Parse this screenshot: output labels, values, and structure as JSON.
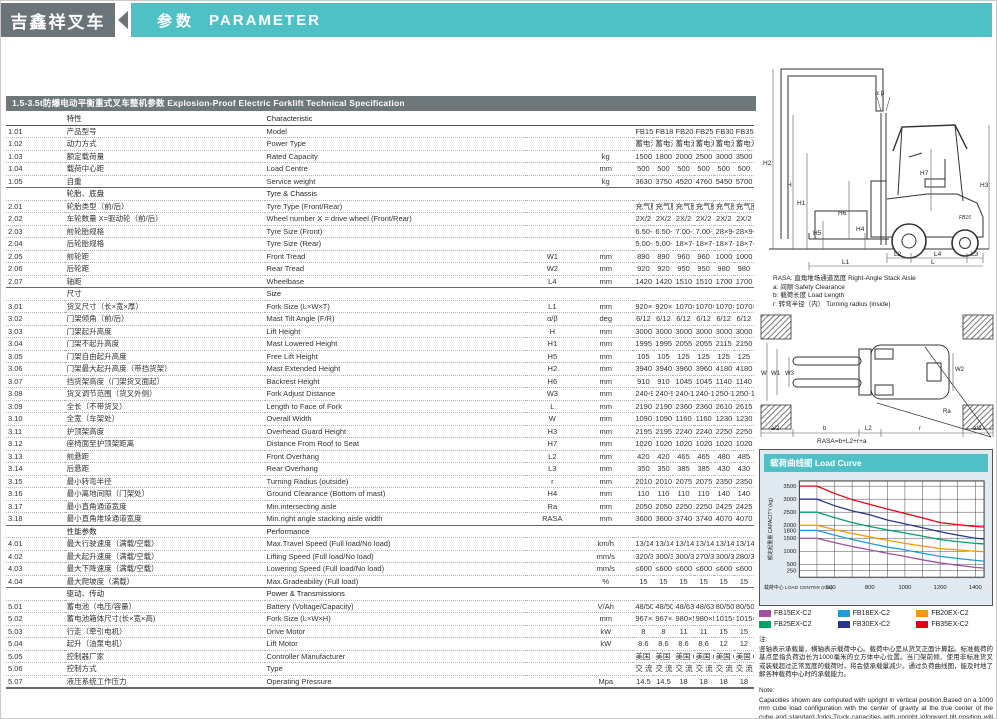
{
  "header": {
    "brand": "吉鑫祥叉车",
    "section_cn": "参数",
    "section_en": "PARAMETER"
  },
  "table": {
    "title": "1.5-3.5t防爆电动平衡重式叉车整机参数  Explosion-Proof Electric Forklift Technical Specification",
    "header_cn": "特性",
    "header_en": "Characteristic",
    "sections": [
      {
        "cn": "",
        "en": "",
        "rows": [
          {
            "no": "1.01",
            "cn": "产品型号",
            "en": "Model",
            "sym": "",
            "unit": "",
            "vals": [
              "FB15EX-C2",
              "FB18EX-C2",
              "FB20EX-C2",
              "FB25EX-C2",
              "FB30EX-C2",
              "FB35EX-C2"
            ]
          },
          {
            "no": "1.02",
            "cn": "动力方式",
            "en": "Power Type",
            "sym": "",
            "unit": "",
            "vals": [
              "蓄电池 Electric",
              "蓄电池 Electric",
              "蓄电池 Electric",
              "蓄电池 Electric",
              "蓄电池 Electric",
              "蓄电池 Electric"
            ]
          },
          {
            "no": "1.03",
            "cn": "额定载荷量",
            "en": "Rated Capacity",
            "sym": "",
            "unit": "kg",
            "vals": [
              "1500",
              "1800",
              "2000",
              "2500",
              "3000",
              "3500"
            ]
          },
          {
            "no": "1.04",
            "cn": "载荷中心距",
            "en": "Load Centre",
            "sym": "",
            "unit": "mm",
            "vals": [
              "500",
              "500",
              "500",
              "500",
              "500",
              "500"
            ]
          },
          {
            "no": "1.05",
            "cn": "自重",
            "en": "Service weight",
            "sym": "",
            "unit": "kg",
            "vals": [
              "3630",
              "3750",
              "4520",
              "4760",
              "5450",
              "5700"
            ]
          }
        ]
      },
      {
        "cn": "轮胎、底盘",
        "en": "Tyre & Chassis",
        "rows": [
          {
            "no": "2.01",
            "cn": "轮胎类型（前/后）",
            "en": "Tyre Type (Front/Rear)",
            "sym": "",
            "unit": "",
            "vals": [
              "充气胎",
              "充气胎",
              "充气胎",
              "充气胎",
              "充气胎",
              "充气胎（后实心胎）"
            ]
          },
          {
            "no": "2.02",
            "cn": "车轮数量 X=驱动轮（前/后）",
            "en": "Wheel number X = drive wheel (Front/Rear)",
            "sym": "",
            "unit": "",
            "vals": [
              "2X/2",
              "2X/2",
              "2X/2",
              "2X/2",
              "2X/2",
              "2X/2"
            ]
          },
          {
            "no": "2.03",
            "cn": "前轮胎规格",
            "en": "Tyre Size (Front)",
            "sym": "",
            "unit": "",
            "vals": [
              "6.50-10-10PR",
              "6.50-10-10PR",
              "7.00-12-12PR",
              "7.00-12-12PR",
              "28×9-15-12PR",
              "28×9-15-12PR"
            ]
          },
          {
            "no": "2.04",
            "cn": "后轮胎规格",
            "en": "Tyre Size (Rear)",
            "sym": "",
            "unit": "",
            "vals": [
              "5.00-8-10PR",
              "5.00-8-10PR",
              "18×7-8-14PR",
              "18×7-8-14PR",
              "18×7-8-14PR",
              "18×7-8（实心胎）"
            ]
          },
          {
            "no": "2.05",
            "cn": "前轮距",
            "en": "Front Tread",
            "sym": "W1",
            "unit": "mm",
            "vals": [
              "890",
              "890",
              "960",
              "960",
              "1000",
              "1000"
            ]
          },
          {
            "no": "2.06",
            "cn": "后轮距",
            "en": "Rear Tread",
            "sym": "W2",
            "unit": "mm",
            "vals": [
              "920",
              "920",
              "950",
              "950",
              "980",
              "980"
            ]
          },
          {
            "no": "2.07",
            "cn": "轴距",
            "en": "Wheelbase",
            "sym": "L4",
            "unit": "mm",
            "vals": [
              "1420",
              "1420",
              "1510",
              "1510",
              "1700",
              "1700"
            ]
          }
        ]
      },
      {
        "cn": "尺寸",
        "en": "Size",
        "rows": [
          {
            "no": "3.01",
            "cn": "货叉尺寸（长×宽×厚）",
            "en": "Fork Size (L×W×T)",
            "sym": "L1",
            "unit": "mm",
            "vals": [
              "920×120×35",
              "920×120×35",
              "1070×120×40",
              "1070×120×40",
              "1070×125×45",
              "1070×125×50"
            ]
          },
          {
            "no": "3.02",
            "cn": "门架倾角（前/后）",
            "en": "Mast Tilt Angle (F/R)",
            "sym": "α/β",
            "unit": "deg",
            "vals": [
              "6/12",
              "6/12",
              "6/12",
              "6/12",
              "6/12",
              "6/12"
            ]
          },
          {
            "no": "3.03",
            "cn": "门架起升高度",
            "en": "Lift Height",
            "sym": "H",
            "unit": "mm",
            "vals": [
              "3000",
              "3000",
              "3000",
              "3000",
              "3000",
              "3000"
            ]
          },
          {
            "no": "3.04",
            "cn": "门架不起升高度",
            "en": "Mast Lowered Height",
            "sym": "H1",
            "unit": "mm",
            "vals": [
              "1995",
              "1995",
              "2055",
              "2055",
              "2115",
              "2150"
            ]
          },
          {
            "no": "3.05",
            "cn": "门架自由起升高度",
            "en": "Free Lift Height",
            "sym": "H5",
            "unit": "mm",
            "vals": [
              "105",
              "105",
              "125",
              "125",
              "125",
              "125"
            ]
          },
          {
            "no": "3.06",
            "cn": "门架最大起升高度（带挡货架）",
            "en": "Mast Extended Height",
            "sym": "H2",
            "unit": "mm",
            "vals": [
              "3940",
              "3940",
              "3960",
              "3960",
              "4180",
              "4180"
            ]
          },
          {
            "no": "3.07",
            "cn": "挡货架高度（门架货叉面起）",
            "en": "Backrest Height",
            "sym": "H6",
            "unit": "mm",
            "vals": [
              "910",
              "910",
              "1045",
              "1045",
              "1140",
              "1140"
            ]
          },
          {
            "no": "3.08",
            "cn": "货叉调节范围（货叉外侧）",
            "en": "Fork Adjust Distance",
            "sym": "W3",
            "unit": "mm",
            "vals": [
              "240-970",
              "240-970",
              "240-1040",
              "240-1040",
              "250-1100",
              "250-1100"
            ]
          },
          {
            "no": "3.09",
            "cn": "全长（不带货叉）",
            "en": "Length to Face of Fork",
            "sym": "L",
            "unit": "mm",
            "vals": [
              "2190",
              "2190",
              "2360",
              "2360",
              "2610",
              "2615"
            ]
          },
          {
            "no": "3.10",
            "cn": "全宽（车架处）",
            "en": "Overall Width",
            "sym": "W",
            "unit": "mm",
            "vals": [
              "1090",
              "1090",
              "1160",
              "1160",
              "1230",
              "1230"
            ]
          },
          {
            "no": "3.11",
            "cn": "护顶架高度",
            "en": "Overhead Guard Height",
            "sym": "H3",
            "unit": "mm",
            "vals": [
              "2195",
              "2195",
              "2240",
              "2240",
              "2250",
              "2250"
            ]
          },
          {
            "no": "3.12",
            "cn": "座椅面至护顶架距离",
            "en": "Distance From Roof to Seat",
            "sym": "H7",
            "unit": "mm",
            "vals": [
              "1020",
              "1020",
              "1020",
              "1020",
              "1020",
              "1020"
            ]
          },
          {
            "no": "3.13",
            "cn": "前悬距",
            "en": "Front Overhang",
            "sym": "L2",
            "unit": "mm",
            "vals": [
              "420",
              "420",
              "465",
              "465",
              "480",
              "485"
            ]
          },
          {
            "no": "3.14",
            "cn": "后悬距",
            "en": "Rear Overhang",
            "sym": "L3",
            "unit": "mm",
            "vals": [
              "350",
              "350",
              "385",
              "385",
              "430",
              "430"
            ]
          },
          {
            "no": "3.15",
            "cn": "最小转弯半径",
            "en": "Turning Radius (outside)",
            "sym": "r",
            "unit": "mm",
            "vals": [
              "2010",
              "2010",
              "2075",
              "2075",
              "2350",
              "2350"
            ]
          },
          {
            "no": "3.16",
            "cn": "最小离地间隙（门架处）",
            "en": "Ground Clearance (Bottom of mast)",
            "sym": "H4",
            "unit": "mm",
            "vals": [
              "110",
              "110",
              "110",
              "110",
              "140",
              "140"
            ]
          },
          {
            "no": "3.17",
            "cn": "最小直角通道宽度",
            "en": "Min.intersecting aisle",
            "sym": "Ra",
            "unit": "mm",
            "vals": [
              "2050",
              "2050",
              "2250",
              "2250",
              "2425",
              "2425"
            ]
          },
          {
            "no": "3.18",
            "cn": "最小直角堆垛通道宽度",
            "en": "Min.right angle stacking aisle width",
            "sym": "RASA",
            "unit": "mm",
            "vals": [
              "3600",
              "3600",
              "3740",
              "3740",
              "4070",
              "4070"
            ]
          }
        ]
      },
      {
        "cn": "性能参数",
        "en": "Performance",
        "rows": [
          {
            "no": "4.01",
            "cn": "最大行驶速度（满载/空载）",
            "en": "Max.Travel Speed (Full load/No load)",
            "sym": "",
            "unit": "km/h",
            "vals": [
              "13/14",
              "13/14",
              "13/14",
              "13/14",
              "13/14",
              "13/14"
            ]
          },
          {
            "no": "4.02",
            "cn": "最大起升速度（满载/空载）",
            "en": "Lifting Speed (Full load/No load)",
            "sym": "",
            "unit": "mm/s",
            "vals": [
              "320/380",
              "300/380",
              "300/380",
              "270/380",
              "300/380",
              "280/360"
            ]
          },
          {
            "no": "4.03",
            "cn": "最大下降速度（满载/空载）",
            "en": "Lowering Speed (Full load/No load)",
            "sym": "",
            "unit": "mm/s",
            "vals": [
              "≤600 / ≥300",
              "≤600 / ≥300",
              "≤600 / ≥300",
              "≤600 / ≥300",
              "≤600 / ≥300",
              "≤600 / ≥300"
            ]
          },
          {
            "no": "4.04",
            "cn": "最大爬坡度（满载）",
            "en": "Max.Gradeability (Full load)",
            "sym": "",
            "unit": "%",
            "vals": [
              "15",
              "15",
              "15",
              "15",
              "15",
              "15"
            ]
          }
        ]
      },
      {
        "cn": "驱动、传动",
        "en": "Power & Transmissions",
        "rows": [
          {
            "no": "5.01",
            "cn": "蓄电池（电压/容量）",
            "en": "Battery (Voltage/Capacity)",
            "sym": "",
            "unit": "V/Ah",
            "vals": [
              "48/500",
              "48/500",
              "48/630",
              "48/630",
              "80/500",
              "80/500"
            ]
          },
          {
            "no": "5.02",
            "cn": "蓄电池箱体尺寸(长×宽×高)",
            "en": "Fork Size (L×W×H)",
            "sym": "",
            "unit": "mm",
            "vals": [
              "967×393×780",
              "967×393×780",
              "980×515×810",
              "980×515×810",
              "1015×690×815",
              "1015×690×815"
            ]
          },
          {
            "no": "5.03",
            "cn": "行走（牵引电机）",
            "en": "Drive Motor",
            "sym": "",
            "unit": "kW",
            "vals": [
              "8",
              "8",
              "11",
              "11",
              "15",
              "15"
            ]
          },
          {
            "no": "5.04",
            "cn": "起升（油泵电机）",
            "en": "Lift Motor",
            "sym": "",
            "unit": "kW",
            "vals": [
              "8.6",
              "8.6",
              "8.6",
              "8.6",
              "12",
              "12"
            ]
          },
          {
            "no": "5.05",
            "cn": "控制器厂家",
            "en": "Controller Manufacturer",
            "sym": "",
            "unit": "",
            "vals": [
              "美国 CURTIS",
              "美国 CURTIS",
              "美国 CURTIS",
              "美国 CURTIS",
              "美国 CURTIS",
              "美国 CURTIS"
            ]
          },
          {
            "no": "5.06",
            "cn": "控制方式",
            "en": "Type",
            "sym": "",
            "unit": "",
            "vals": [
              "交 流",
              "交 流",
              "交 流",
              "交 流",
              "交 流",
              "交 流"
            ]
          },
          {
            "no": "5.07",
            "cn": "液压系统工作压力",
            "en": "Operating Pressure",
            "sym": "",
            "unit": "Mpa",
            "vals": [
              "14.5",
              "14.5",
              "18",
              "18",
              "18",
              "18"
            ]
          }
        ]
      }
    ]
  },
  "diagrams": {
    "side": {
      "alpha_beta": "α β",
      "h2": "H2",
      "h": "H",
      "h1": "H1",
      "h6": "H6",
      "h5": "H5",
      "h4": "H4",
      "h7": "H7",
      "h3": "H3",
      "l2": "L2",
      "l4": "L4",
      "l3": "L3",
      "l1": "L1",
      "l": "L",
      "logo": "FB15"
    },
    "rasa_note": {
      "line1": "RASA: 直角堆场通道宽度 Right-Angle Stack Aisle",
      "line2": "a: 间隙 Safety Clearance",
      "line3": "b: 载荷长度 Load Length",
      "line4": "r: 转弯半径（内） Turning radius (inside)"
    },
    "top": {
      "w": "W",
      "w1": "W1",
      "w3": "W3",
      "w2": "W2",
      "ra": "Ra",
      "a2_left": "a/2",
      "b": "b",
      "l2": "L2",
      "r": "r",
      "a2_right": "a/2",
      "formula": "RASA=b+L2+r+a"
    }
  },
  "chart_data": {
    "type": "line",
    "title": "载荷曲线图 Load Curve",
    "xlabel": "载荷中心 LOAD CENTER (mm)",
    "ylabel": "额定起重量 CAPACITY (kg)",
    "xlim": [
      400,
      1450
    ],
    "ylim": [
      0,
      3700
    ],
    "x_ticks": [
      500,
      800,
      1000,
      1200,
      1400
    ],
    "y_ticks": [
      250,
      500,
      1000,
      1500,
      1800,
      2000,
      2500,
      3000,
      3500
    ],
    "grid": true,
    "legend_position": "below",
    "x": [
      400,
      500,
      600,
      700,
      800,
      900,
      1000,
      1100,
      1200,
      1300,
      1400,
      1450
    ],
    "series": [
      {
        "name": "FB15EX-C2",
        "color": "#a0529e",
        "values": [
          1500,
          1500,
          1330,
          1180,
          1050,
          920,
          800,
          670,
          550,
          460,
          380,
          350
        ]
      },
      {
        "name": "FB18EX-C2",
        "color": "#1f9cd8",
        "values": [
          1800,
          1800,
          1620,
          1450,
          1300,
          1160,
          1050,
          920,
          800,
          720,
          650,
          620
        ]
      },
      {
        "name": "FB20EX-C2",
        "color": "#f39800",
        "values": [
          2000,
          2000,
          1830,
          1680,
          1550,
          1420,
          1300,
          1200,
          1100,
          1050,
          1000,
          980
        ]
      },
      {
        "name": "FB25EX-C2",
        "color": "#00a263",
        "values": [
          2500,
          2500,
          2290,
          2100,
          1950,
          1820,
          1700,
          1580,
          1450,
          1370,
          1300,
          1280
        ]
      },
      {
        "name": "FB30EX-C2",
        "color": "#27348b",
        "values": [
          3000,
          3000,
          2750,
          2550,
          2400,
          2200,
          2050,
          1900,
          1750,
          1620,
          1500,
          1470
        ]
      },
      {
        "name": "FB35EX-C2",
        "color": "#e60012",
        "values": [
          3500,
          3500,
          3220,
          2980,
          2800,
          2620,
          2450,
          2280,
          2100,
          2020,
          1950,
          1930
        ]
      }
    ]
  },
  "notes": {
    "cn_title": "注:",
    "cn_body": "竖轴表示承载量，横轴表示载荷中心。载荷中心是从货叉正面计算起。标准载荷的基点是指负荷边长为1000毫米的立方体中心位置。当门架前倾、使用非标准货叉或装载超过正常宽度的载荷时，将会使承载量减少。通过负荷曲线图，能及时地了解各种载荷中心时的承载能力。",
    "en_title": "Note:",
    "en_body": "Capacities shown are computed with upright in vertical position.Based on a 1000 mm cube load configuration with the center of gravity at the true center of the cube and standard forks.Truck capacities with upright inforward tilt position will be less.Long forks and unusually wide or loads may also reduce capacity."
  }
}
